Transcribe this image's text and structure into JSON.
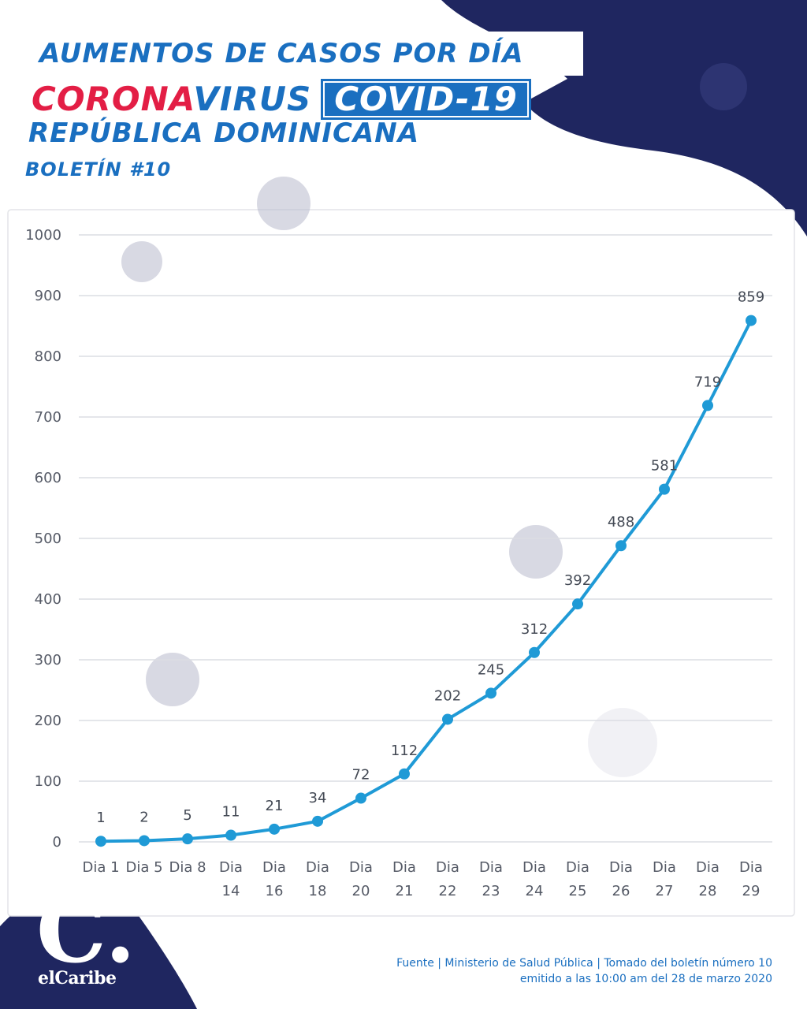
{
  "header": {
    "title_line1": "AUMENTOS DE CASOS POR DÍA",
    "title_corona": "CORONA",
    "title_virus": "VIRUS",
    "title_covid": "COVID-19",
    "title_line3": "REPÚBLICA DOMINICANA",
    "subtitle": "BOLETÍN #10"
  },
  "colors": {
    "navy": "#1f2660",
    "brand_blue": "#1a6fc0",
    "brand_red": "#e31e45",
    "line": "#1f9ad6",
    "grid": "#dcdde3"
  },
  "chart_data": {
    "type": "line",
    "x_lines": [
      [
        "Dia 1"
      ],
      [
        "Dia 5"
      ],
      [
        "Dia 8"
      ],
      [
        "Dia",
        "14"
      ],
      [
        "Dia",
        "16"
      ],
      [
        "Dia",
        "18"
      ],
      [
        "Dia",
        "20"
      ],
      [
        "Dia",
        "21"
      ],
      [
        "Dia",
        "22"
      ],
      [
        "Dia",
        "23"
      ],
      [
        "Dia",
        "24"
      ],
      [
        "Dia",
        "25"
      ],
      [
        "Dia",
        "26"
      ],
      [
        "Dia",
        "27"
      ],
      [
        "Dia",
        "28"
      ],
      [
        "Dia",
        "29"
      ]
    ],
    "values": [
      1,
      2,
      5,
      11,
      21,
      34,
      72,
      112,
      202,
      245,
      312,
      392,
      488,
      581,
      719,
      859
    ],
    "yticks": [
      "0",
      "100",
      "200",
      "300",
      "400",
      "500",
      "600",
      "700",
      "800",
      "900",
      "1000"
    ],
    "ylim": [
      0,
      1000
    ],
    "grid": true,
    "legend": "none"
  },
  "logo": {
    "mark": "C.",
    "text": "elCaribe"
  },
  "footer": {
    "source_line1": "Fuente | Ministerio de Salud Pública | Tomado del boletín número 10",
    "source_line2": "emitido a las 10:00 am del 28 de marzo 2020"
  }
}
